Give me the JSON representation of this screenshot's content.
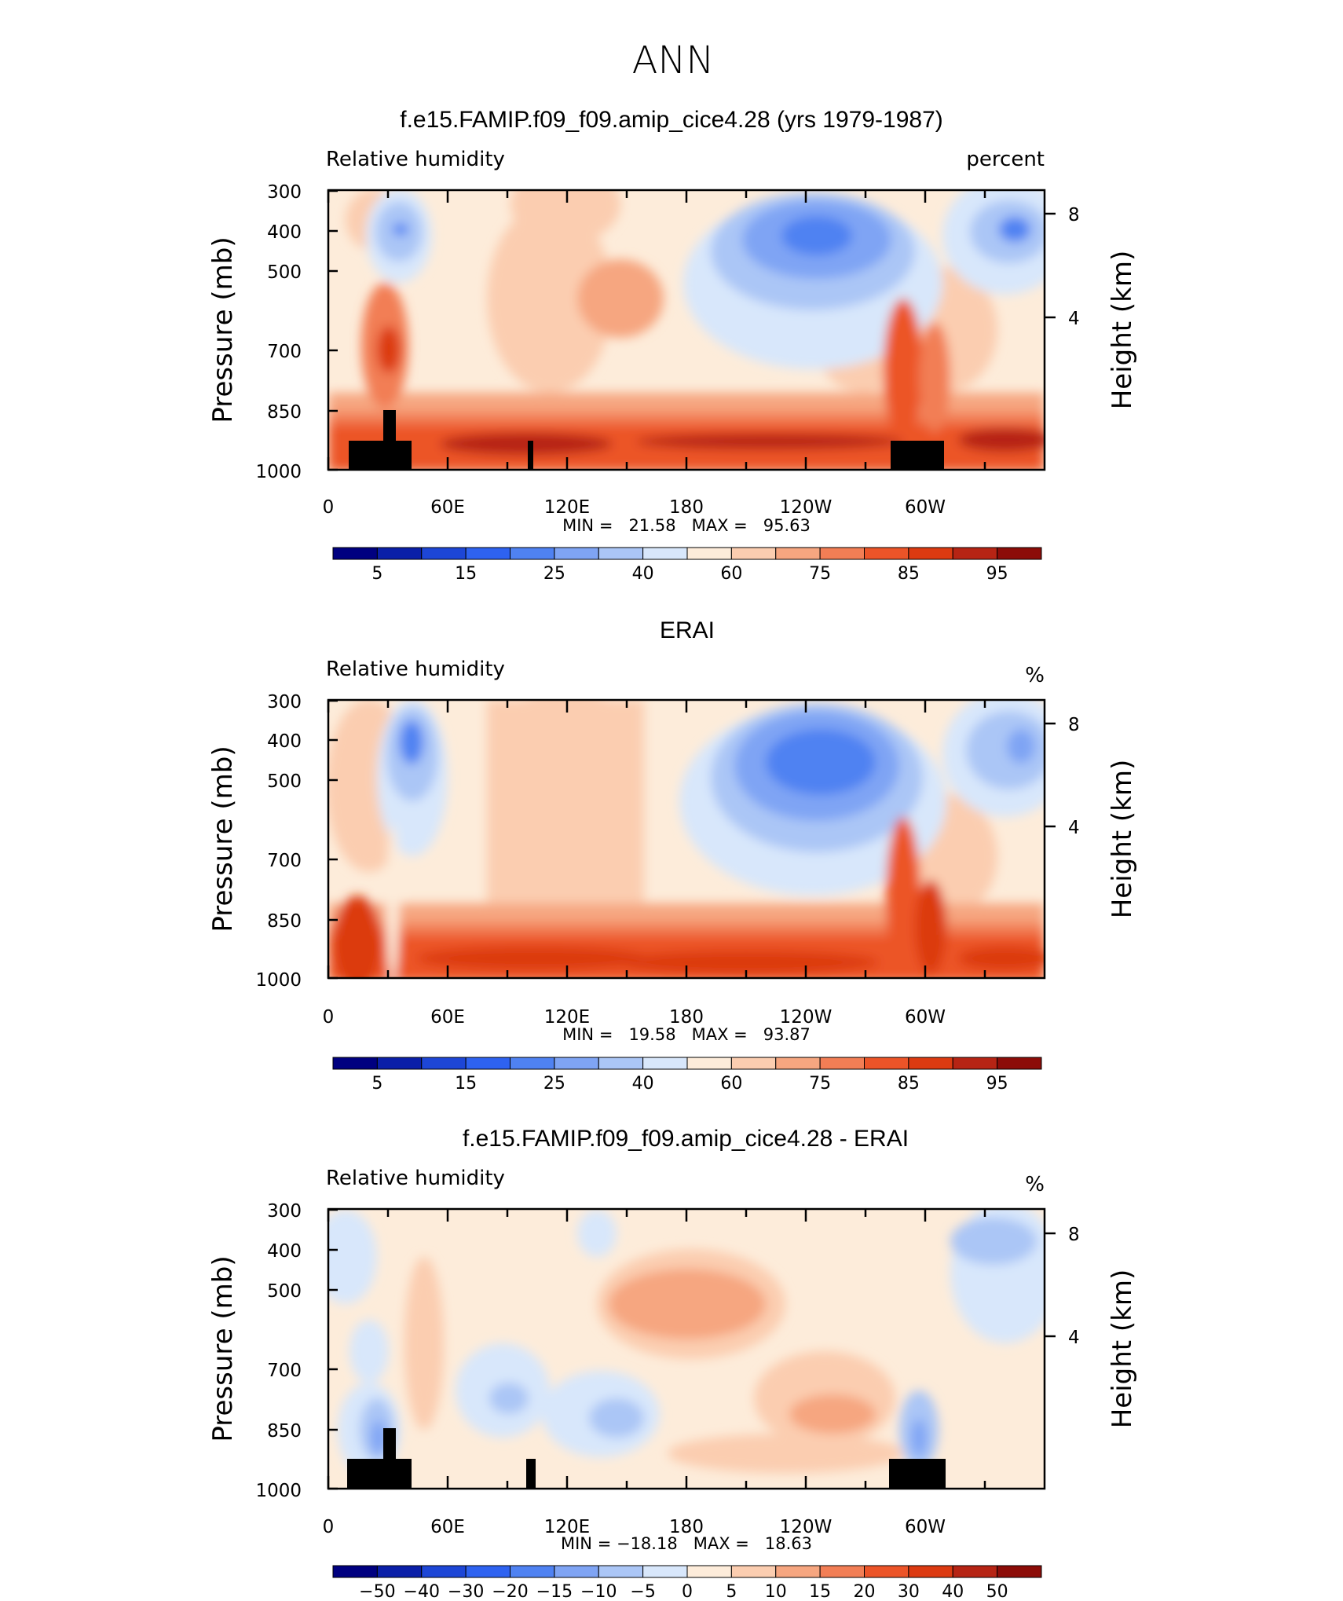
{
  "figure_title": "ANN",
  "panels": [
    {
      "title": "f.e15.FAMIP.f09_f09.amip_cice4.28 (yrs 1979-1987)",
      "left_label": "Relative humidity",
      "right_label": "percent",
      "min_max_text": "MIN =   21.58   MAX =   95.63",
      "colorbar_labels": [
        "5",
        "15",
        "25",
        "40",
        "60",
        "75",
        "85",
        "95"
      ]
    },
    {
      "title": "ERAI",
      "left_label": "Relative humidity",
      "right_label": "%",
      "min_max_text": "MIN =   19.58   MAX =   93.87",
      "colorbar_labels": [
        "5",
        "15",
        "25",
        "40",
        "60",
        "75",
        "85",
        "95"
      ]
    },
    {
      "title": "f.e15.FAMIP.f09_f09.amip_cice4.28 - ERAI",
      "left_label": "Relative humidity",
      "right_label": "%",
      "min_max_text": "MIN = −18.18   MAX =   18.63",
      "colorbar_labels": [
        "−50",
        "−40",
        "−30",
        "−20",
        "−15",
        "−10",
        "−5",
        "0",
        "5",
        "10",
        "15",
        "20",
        "30",
        "40",
        "50"
      ]
    }
  ],
  "axes": {
    "ylabel": "Pressure (mb)",
    "y2label": "Height (km)",
    "yticks": [
      "300",
      "400",
      "500",
      "700",
      "850",
      "1000"
    ],
    "y2ticks": [
      "8",
      "4"
    ],
    "xticks": [
      "0",
      "60E",
      "120E",
      "180",
      "120W",
      "60W"
    ]
  },
  "colors": {
    "abs_palette": [
      "#000080",
      "#0a1fa8",
      "#1d46d6",
      "#2e62f0",
      "#4f82f2",
      "#7fa4f4",
      "#abc6f6",
      "#d8e7fb",
      "#fdecda",
      "#fbcdb0",
      "#f6a680",
      "#f27e55",
      "#ec5428",
      "#dc3a11",
      "#b62414",
      "#8c0c08"
    ],
    "diff_palette": [
      "#000080",
      "#0a1fa8",
      "#1d46d6",
      "#2e62f0",
      "#4f82f2",
      "#7fa4f4",
      "#abc6f6",
      "#d8e7fb",
      "#fdecda",
      "#fbcdb0",
      "#f6a680",
      "#f27e55",
      "#ec5428",
      "#dc3a11",
      "#b62414",
      "#8c0c08"
    ],
    "topography": "#000000"
  },
  "chart_data": [
    {
      "type": "heatmap",
      "title": "f.e15.FAMIP.f09_f09.amip_cice4.28 (yrs 1979-1987)",
      "field": "Relative humidity",
      "units": "percent",
      "xlabel": "",
      "ylabel": "Pressure (mb)",
      "y2label": "Height (km)",
      "x_range": [
        0,
        360
      ],
      "y_range_mb": [
        1000,
        300
      ],
      "y2_ticks_km": [
        8,
        4
      ],
      "levels": [
        5,
        10,
        15,
        20,
        25,
        30,
        40,
        50,
        60,
        70,
        75,
        80,
        85,
        90,
        95
      ],
      "min": 21.58,
      "max": 95.63,
      "approx_features": [
        {
          "name": "dry minimum",
          "lon": 45,
          "p": 400,
          "value": 25
        },
        {
          "name": "dry minimum",
          "lon": 240,
          "p": 420,
          "value": 25
        },
        {
          "name": "dry minimum",
          "lon": 345,
          "p": 400,
          "value": 25
        },
        {
          "name": "moist boundary layer",
          "p": 925,
          "value": 90
        }
      ]
    },
    {
      "type": "heatmap",
      "title": "ERAI",
      "field": "Relative humidity",
      "units": "%",
      "xlabel": "",
      "ylabel": "Pressure (mb)",
      "y2label": "Height (km)",
      "x_range": [
        0,
        360
      ],
      "y_range_mb": [
        1000,
        300
      ],
      "y2_ticks_km": [
        8,
        4
      ],
      "levels": [
        5,
        10,
        15,
        20,
        25,
        30,
        40,
        50,
        60,
        70,
        75,
        80,
        85,
        90,
        95
      ],
      "min": 19.58,
      "max": 93.87,
      "approx_features": [
        {
          "name": "dry minimum",
          "lon": 42,
          "p": 400,
          "value": 22
        },
        {
          "name": "dry minimum",
          "lon": 245,
          "p": 430,
          "value": 22
        },
        {
          "name": "dry minimum",
          "lon": 345,
          "p": 400,
          "value": 30
        }
      ]
    },
    {
      "type": "heatmap",
      "title": "f.e15.FAMIP.f09_f09.amip_cice4.28 - ERAI",
      "field": "Relative humidity",
      "units": "%",
      "xlabel": "",
      "ylabel": "Pressure (mb)",
      "y2label": "Height (km)",
      "x_range": [
        0,
        360
      ],
      "y_range_mb": [
        1000,
        300
      ],
      "y2_ticks_km": [
        8,
        4
      ],
      "levels": [
        -50,
        -40,
        -30,
        -20,
        -15,
        -10,
        -5,
        0,
        5,
        10,
        15,
        20,
        30,
        40,
        50
      ],
      "min": -18.18,
      "max": 18.63
    }
  ]
}
